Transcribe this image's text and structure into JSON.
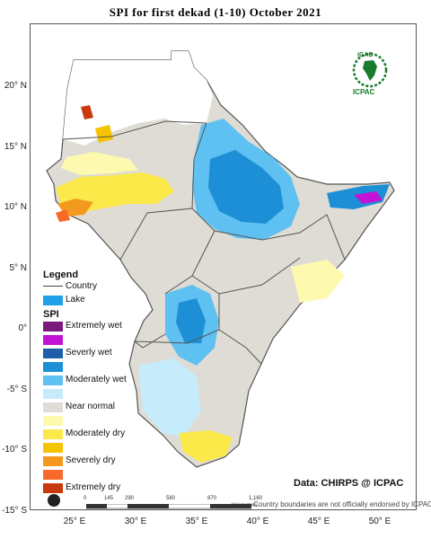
{
  "title": "SPI   for   first dekad (1-10)  October  2021",
  "credit": "Data: CHIRPS @ ICPAC",
  "disclaimer": "Country boundaries are not officially endorsed by ICPAC",
  "logo": {
    "igad": "IGAD",
    "icpac": "ICPAC"
  },
  "lat_ticks": [
    {
      "label": "20° N",
      "lat": 20
    },
    {
      "label": "15° N",
      "lat": 15
    },
    {
      "label": "10° N",
      "lat": 10
    },
    {
      "label": "5° N",
      "lat": 5
    },
    {
      "label": "0°",
      "lat": 0
    },
    {
      "label": "-5° S",
      "lat": -5
    },
    {
      "label": "-10° S",
      "lat": -10
    },
    {
      "label": "-15° S",
      "lat": -15
    }
  ],
  "lon_ticks": [
    {
      "label": "25° E",
      "lon": 25
    },
    {
      "label": "30° E",
      "lon": 30
    },
    {
      "label": "35° E",
      "lon": 35
    },
    {
      "label": "40° E",
      "lon": 40
    },
    {
      "label": "45° E",
      "lon": 45
    },
    {
      "label": "50° E",
      "lon": 50
    }
  ],
  "scale_bar": {
    "labels": [
      "0",
      "145",
      "290",
      "580",
      "870",
      "1,160"
    ],
    "unit": "Kilometers"
  },
  "legend": {
    "title": "Legend",
    "country_label": "Country",
    "lake_label": "Lake",
    "lake_color": "#1fa0e8",
    "spi_title": "SPI",
    "classes": [
      {
        "label": "Extremely wet",
        "color": "#7a1a7a"
      },
      {
        "label": "",
        "color": "#c213d6"
      },
      {
        "label": "Severly wet",
        "color": "#1f5fa8"
      },
      {
        "label": "",
        "color": "#1d8fd6"
      },
      {
        "label": "Moderately wet",
        "color": "#5fc0f2"
      },
      {
        "label": "",
        "color": "#c6ecfb"
      },
      {
        "label": "Near normal",
        "color": "#dedcd4"
      },
      {
        "label": "",
        "color": "#fdfab0"
      },
      {
        "label": "Moderately dry",
        "color": "#fbe94a"
      },
      {
        "label": "",
        "color": "#f5c400"
      },
      {
        "label": "Severely dry",
        "color": "#f39a1e"
      },
      {
        "label": "",
        "color": "#f76a2a"
      },
      {
        "label": "Extremely dry",
        "color": "#c8390e"
      }
    ]
  }
}
